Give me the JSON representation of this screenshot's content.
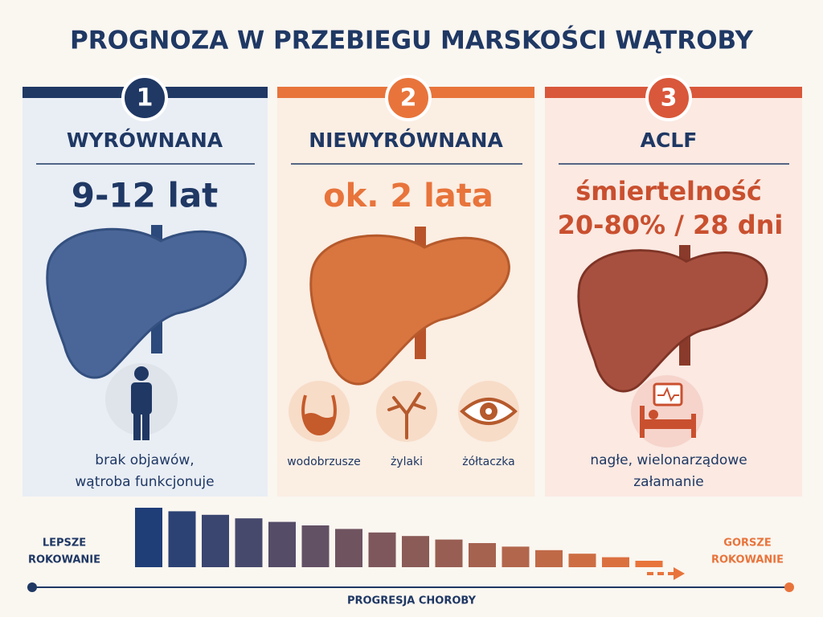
{
  "header": {
    "title": "PROGNOZA W PRZEBIEGU MARSKOŚCI WĄTROBY"
  },
  "stages": [
    {
      "number": "1",
      "name": "WYRÓWNANA",
      "prognosis": [
        "9-12 lat"
      ],
      "description": [
        "brak objawów,",
        "wątroba funkcjonuje"
      ]
    },
    {
      "number": "2",
      "name": "NIEWYRÓWNANA",
      "prognosis": [
        "ok. 2 lata"
      ],
      "symptoms": [
        "wodobrzusze",
        "żylaki",
        "żółtaczka"
      ]
    },
    {
      "number": "3",
      "name": "ACLF",
      "prognosis": [
        "śmiertelność",
        "20-80% / 28 dni"
      ],
      "description": [
        "nagłe, wielonarządowe",
        "załamanie"
      ]
    }
  ],
  "footer": {
    "left_label": [
      "LEPSZE",
      "ROKOWANIE"
    ],
    "right_label": [
      "GORSZE",
      "ROKOWANIE"
    ],
    "axis_label": "PROGRESJA CHOROBY"
  }
}
